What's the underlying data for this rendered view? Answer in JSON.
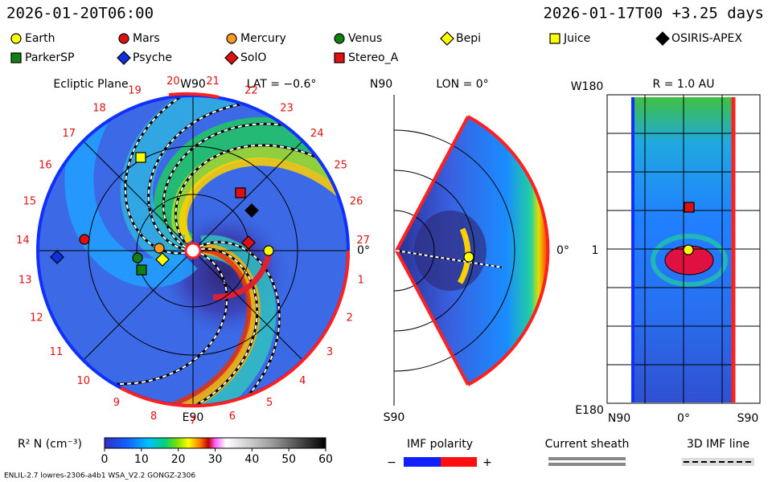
{
  "header": {
    "left": "2026-01-20T06:00",
    "right": "2026-01-17T00 +3.25 days"
  },
  "legend": [
    {
      "name": "Earth",
      "color": "#ffff00",
      "shape": "circle"
    },
    {
      "name": "Mars",
      "color": "#e01010",
      "shape": "circle"
    },
    {
      "name": "Mercury",
      "color": "#ff9a20",
      "shape": "circle"
    },
    {
      "name": "Venus",
      "color": "#108010",
      "shape": "circle"
    },
    {
      "name": "Bepi",
      "color": "#ffff00",
      "shape": "diamond"
    },
    {
      "name": "Juice",
      "color": "#ffff00",
      "shape": "square"
    },
    {
      "name": "OSIRIS-APEX",
      "color": "#000000",
      "shape": "diamond"
    },
    {
      "name": "ParkerSP",
      "color": "#108010",
      "shape": "square"
    },
    {
      "name": "Psyche",
      "color": "#1030e0",
      "shape": "diamond"
    },
    {
      "name": "SolO",
      "color": "#e01010",
      "shape": "diamond"
    },
    {
      "name": "Stereo_A",
      "color": "#e01010",
      "shape": "square"
    }
  ],
  "ecliptic": {
    "title": "Ecliptic Plane",
    "top": "W90",
    "lat": "LAT = −0.6°",
    "right": "0°",
    "bottom": "E90",
    "sectors": [
      1,
      2,
      3,
      4,
      5,
      6,
      7,
      8,
      9,
      10,
      11,
      12,
      13,
      14,
      15,
      16,
      17,
      18,
      19,
      20,
      21,
      22,
      23,
      24,
      25,
      26,
      27
    ]
  },
  "meridional": {
    "top_left": "N90",
    "lon": "LON = 0°",
    "right": "0°",
    "bottom": "S90"
  },
  "radial": {
    "top_left": "W180",
    "title": "R = 1.0 AU",
    "left": "1",
    "bottom_left": "E180",
    "x_labels": [
      "N90",
      "0°",
      "S90"
    ]
  },
  "colorbar": {
    "label": "R² N (cm⁻³)",
    "ticks": [
      0,
      10,
      20,
      30,
      40,
      50,
      60
    ]
  },
  "keys": {
    "imf": {
      "title": "IMF polarity",
      "minus": "−",
      "plus": "+"
    },
    "sheath": "Current sheath",
    "imf_line": "3D IMF line"
  },
  "footer": "ENLIL-2.7 lowres-2306-a4b1 WSA_V2.2 GONGZ-2306"
}
